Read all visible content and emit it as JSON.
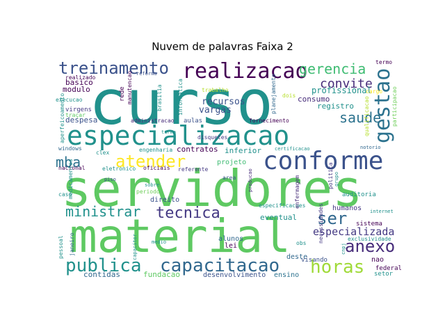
{
  "chart_data": {
    "type": "wordcloud",
    "title": "Nuvem de palavras Faixa 2",
    "background": "#ffffff",
    "palette": "viridis",
    "words": [
      {
        "text": "servidores",
        "color": "#5ec962"
      },
      {
        "text": "curso",
        "color": "#21918c"
      },
      {
        "text": "material",
        "color": "#5ec962"
      },
      {
        "text": "especializacao",
        "color": "#21918c"
      },
      {
        "text": "conforme",
        "color": "#3b528b"
      },
      {
        "text": "realizacao",
        "color": "#440154"
      },
      {
        "text": "treinamento",
        "color": "#3b528b"
      },
      {
        "text": "atender",
        "color": "#fde725"
      },
      {
        "text": "gestao",
        "color": "#2c728e"
      },
      {
        "text": "capacitacao",
        "color": "#31688e"
      },
      {
        "text": "publica",
        "color": "#21918c"
      },
      {
        "text": "tecnica",
        "color": "#443983"
      },
      {
        "text": "horas",
        "color": "#a0da39"
      },
      {
        "text": "anexo",
        "color": "#472c7a"
      },
      {
        "text": "ministrar",
        "color": "#21918c"
      },
      {
        "text": "gerencia",
        "color": "#3fbc73"
      },
      {
        "text": "ser",
        "color": "#31688e"
      },
      {
        "text": "saude",
        "color": "#2c728e"
      },
      {
        "text": "convite",
        "color": "#472c7a"
      },
      {
        "text": "mba",
        "color": "#2c728e"
      },
      {
        "text": "especializada",
        "color": "#443983"
      },
      {
        "text": "profissional",
        "color": "#21918c"
      },
      {
        "text": "recursos",
        "color": "#3b528b"
      },
      {
        "text": "vargas",
        "color": "#3b528b"
      },
      {
        "text": "consumo",
        "color": "#472c7a"
      },
      {
        "text": "registro",
        "color": "#21918c"
      },
      {
        "text": "modulo",
        "color": "#440154"
      },
      {
        "text": "basico",
        "color": "#440154"
      },
      {
        "text": "despesa",
        "color": "#3b528b"
      },
      {
        "text": "contratos",
        "color": "#440154"
      },
      {
        "text": "inferior",
        "color": "#21918c"
      },
      {
        "text": "projeto",
        "color": "#3fbc73"
      },
      {
        "text": "eventual",
        "color": "#21918c"
      },
      {
        "text": "sistema",
        "color": "#440154"
      },
      {
        "text": "humanos",
        "color": "#443983"
      },
      {
        "text": "desenvolvimento",
        "color": "#3b528b"
      },
      {
        "text": "fundacao",
        "color": "#5ec962"
      },
      {
        "text": "ensino",
        "color": "#2c728e"
      },
      {
        "text": "contidas",
        "color": "#31688e"
      },
      {
        "text": "alunos",
        "color": "#31688e"
      },
      {
        "text": "lei",
        "color": "#440154"
      },
      {
        "text": "nao",
        "color": "#440154"
      },
      {
        "text": "federal",
        "color": "#440154"
      },
      {
        "text": "setor",
        "color": "#21918c"
      },
      {
        "text": "deste",
        "color": "#31688e"
      },
      {
        "text": "visando",
        "color": "#3b528b"
      },
      {
        "text": "manutencao",
        "color": "#440154"
      },
      {
        "text": "realizado",
        "color": "#440154"
      },
      {
        "text": "execucao",
        "color": "#21918c"
      },
      {
        "text": "virgens",
        "color": "#443983"
      },
      {
        "text": "trabalho",
        "color": "#b5de2b"
      },
      {
        "text": "rede",
        "color": "#440154"
      },
      {
        "text": "brasilia",
        "color": "#21918c"
      },
      {
        "text": "informatica",
        "color": "#21918c"
      },
      {
        "text": "aulas",
        "color": "#3b528b"
      },
      {
        "text": "administracao",
        "color": "#472c7a"
      },
      {
        "text": "fornecimento",
        "color": "#440154"
      },
      {
        "text": "engenharia",
        "color": "#21918c"
      },
      {
        "text": "certificacao",
        "color": "#21918c"
      },
      {
        "text": "windows",
        "color": "#31688e"
      },
      {
        "text": "nacional",
        "color": "#440154"
      },
      {
        "text": "referente",
        "color": "#443983"
      },
      {
        "text": "oficiais",
        "color": "#440154"
      },
      {
        "text": "eletronico",
        "color": "#21918c"
      },
      {
        "text": "direito",
        "color": "#3b528b"
      },
      {
        "text": "area",
        "color": "#3b528b"
      },
      {
        "text": "especificacoes",
        "color": "#21918c"
      },
      {
        "text": "auditoria",
        "color": "#21918c"
      },
      {
        "text": "obs",
        "color": "#21918c"
      },
      {
        "text": "janeiro",
        "color": "#31688e"
      },
      {
        "text": "pessoal",
        "color": "#21918c"
      },
      {
        "text": "medio",
        "color": "#21918c"
      },
      {
        "text": "capacitor",
        "color": "#21918c"
      },
      {
        "text": "medicamentos",
        "color": "#21918c"
      },
      {
        "text": "aperfeicoamento",
        "color": "#21918c"
      },
      {
        "text": "planejamento",
        "color": "#31688e"
      },
      {
        "text": "qualificacao",
        "color": "#b5de2b"
      },
      {
        "text": "participacao",
        "color": "#6ece58"
      },
      {
        "text": "termo",
        "color": "#440154"
      },
      {
        "text": "necessidades",
        "color": "#443983"
      },
      {
        "text": "enfermagem",
        "color": "#472c7a"
      },
      {
        "text": "exclusividade",
        "color": "#21918c"
      },
      {
        "text": "internet",
        "color": "#21918c"
      },
      {
        "text": "dois",
        "color": "#b5de2b"
      },
      {
        "text": "cargo",
        "color": "#fde725"
      },
      {
        "text": "reforma",
        "color": "#3b528b"
      },
      {
        "text": "disquetes",
        "color": "#443983"
      },
      {
        "text": "politica",
        "color": "#443983"
      },
      {
        "text": "producao",
        "color": "#472c7a"
      },
      {
        "text": "periodo",
        "color": "#6ece58"
      },
      {
        "text": "sobre",
        "color": "#21918c"
      },
      {
        "text": "caso",
        "color": "#21918c"
      },
      {
        "text": "traçar",
        "color": "#5ec962"
      },
      {
        "text": "notorio",
        "color": "#31688e"
      },
      {
        "text": "clex",
        "color": "#21918c"
      },
      {
        "text": "turma",
        "color": "#21918c"
      },
      {
        "text": "cnpj",
        "color": "#21918c"
      },
      {
        "text": "grupo",
        "color": "#21918c"
      },
      {
        "text": "piso",
        "color": "#3b528b"
      }
    ]
  }
}
